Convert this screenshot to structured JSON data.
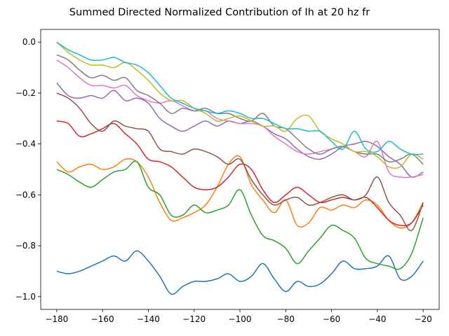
{
  "chart_data": {
    "type": "line",
    "title": "Summed Directed Normalized Contribution of Ih at 20 hz fr",
    "xlabel": "",
    "ylabel": "",
    "xlim": [
      -187,
      -13
    ],
    "ylim": [
      -1.05,
      0.05
    ],
    "xticks": [
      -180,
      -160,
      -140,
      -120,
      -100,
      -80,
      -60,
      -40,
      -20
    ],
    "xtick_labels": [
      "−180",
      "−160",
      "−140",
      "−120",
      "−100",
      "−80",
      "−60",
      "−40",
      "−20"
    ],
    "yticks": [
      0.0,
      -0.2,
      -0.4,
      -0.6,
      -0.8,
      -1.0
    ],
    "ytick_labels": [
      "0.0",
      "−0.2",
      "−0.4",
      "−0.6",
      "−0.8",
      "−1.0"
    ],
    "grid": false,
    "x": [
      -180,
      -175,
      -170,
      -165,
      -160,
      -155,
      -150,
      -145,
      -140,
      -135,
      -130,
      -125,
      -120,
      -115,
      -110,
      -105,
      -100,
      -95,
      -90,
      -85,
      -80,
      -75,
      -70,
      -65,
      -60,
      -55,
      -50,
      -45,
      -40,
      -35,
      -30,
      -25,
      -20
    ],
    "series": [
      {
        "color": "#1f77b4",
        "values": [
          -0.9,
          -0.91,
          -0.9,
          -0.88,
          -0.86,
          -0.84,
          -0.86,
          -0.82,
          -0.86,
          -0.92,
          -0.99,
          -0.96,
          -0.94,
          -0.94,
          -0.93,
          -0.91,
          -0.94,
          -0.92,
          -0.87,
          -0.93,
          -0.98,
          -0.94,
          -0.96,
          -0.95,
          -0.91,
          -0.86,
          -0.89,
          -0.89,
          -0.88,
          -0.84,
          -0.93,
          -0.92,
          -0.86
        ]
      },
      {
        "color": "#ff7f0e",
        "values": [
          -0.47,
          -0.51,
          -0.49,
          -0.48,
          -0.5,
          -0.49,
          -0.46,
          -0.47,
          -0.53,
          -0.63,
          -0.7,
          -0.69,
          -0.67,
          -0.64,
          -0.57,
          -0.48,
          -0.45,
          -0.56,
          -0.62,
          -0.67,
          -0.62,
          -0.72,
          -0.71,
          -0.65,
          -0.66,
          -0.64,
          -0.65,
          -0.62,
          -0.64,
          -0.7,
          -0.73,
          -0.71,
          -0.63
        ]
      },
      {
        "color": "#2ca02c",
        "values": [
          -0.5,
          -0.52,
          -0.55,
          -0.57,
          -0.54,
          -0.51,
          -0.5,
          -0.47,
          -0.57,
          -0.6,
          -0.68,
          -0.68,
          -0.64,
          -0.67,
          -0.66,
          -0.64,
          -0.58,
          -0.68,
          -0.76,
          -0.78,
          -0.81,
          -0.87,
          -0.82,
          -0.77,
          -0.72,
          -0.74,
          -0.77,
          -0.85,
          -0.87,
          -0.88,
          -0.89,
          -0.83,
          -0.69
        ]
      },
      {
        "color": "#d62728",
        "values": [
          -0.31,
          -0.32,
          -0.37,
          -0.36,
          -0.34,
          -0.32,
          -0.36,
          -0.4,
          -0.46,
          -0.47,
          -0.49,
          -0.53,
          -0.57,
          -0.58,
          -0.57,
          -0.53,
          -0.48,
          -0.5,
          -0.58,
          -0.63,
          -0.6,
          -0.57,
          -0.6,
          -0.63,
          -0.62,
          -0.61,
          -0.62,
          -0.61,
          -0.65,
          -0.7,
          -0.72,
          -0.71,
          -0.64
        ]
      },
      {
        "color": "#9467bd",
        "values": [
          -0.16,
          -0.21,
          -0.22,
          -0.21,
          -0.22,
          -0.19,
          -0.23,
          -0.22,
          -0.24,
          -0.3,
          -0.33,
          -0.35,
          -0.33,
          -0.31,
          -0.33,
          -0.31,
          -0.32,
          -0.31,
          -0.33,
          -0.36,
          -0.38,
          -0.42,
          -0.45,
          -0.46,
          -0.44,
          -0.41,
          -0.4,
          -0.39,
          -0.41,
          -0.45,
          -0.48,
          -0.53,
          -0.51
        ]
      },
      {
        "color": "#8c564b",
        "values": [
          -0.2,
          -0.22,
          -0.26,
          -0.32,
          -0.35,
          -0.31,
          -0.33,
          -0.34,
          -0.35,
          -0.42,
          -0.43,
          -0.44,
          -0.42,
          -0.43,
          -0.45,
          -0.48,
          -0.46,
          -0.54,
          -0.6,
          -0.64,
          -0.62,
          -0.61,
          -0.64,
          -0.63,
          -0.61,
          -0.6,
          -0.62,
          -0.6,
          -0.53,
          -0.63,
          -0.68,
          -0.74,
          -0.63
        ]
      },
      {
        "color": "#e377c2",
        "values": [
          -0.07,
          -0.1,
          -0.14,
          -0.17,
          -0.17,
          -0.18,
          -0.17,
          -0.21,
          -0.23,
          -0.24,
          -0.23,
          -0.25,
          -0.27,
          -0.27,
          -0.3,
          -0.31,
          -0.32,
          -0.32,
          -0.33,
          -0.37,
          -0.4,
          -0.43,
          -0.44,
          -0.43,
          -0.42,
          -0.41,
          -0.43,
          -0.45,
          -0.39,
          -0.51,
          -0.53,
          -0.53,
          -0.52
        ]
      },
      {
        "color": "#7f7f7f",
        "values": [
          -0.05,
          -0.07,
          -0.11,
          -0.14,
          -0.13,
          -0.15,
          -0.14,
          -0.19,
          -0.21,
          -0.24,
          -0.28,
          -0.26,
          -0.27,
          -0.26,
          -0.28,
          -0.28,
          -0.3,
          -0.31,
          -0.28,
          -0.33,
          -0.34,
          -0.38,
          -0.42,
          -0.44,
          -0.42,
          -0.41,
          -0.43,
          -0.44,
          -0.44,
          -0.47,
          -0.46,
          -0.44,
          -0.48
        ]
      },
      {
        "color": "#bcbd22",
        "values": [
          0.0,
          -0.04,
          -0.07,
          -0.09,
          -0.09,
          -0.1,
          -0.08,
          -0.11,
          -0.15,
          -0.2,
          -0.23,
          -0.23,
          -0.26,
          -0.28,
          -0.31,
          -0.3,
          -0.29,
          -0.31,
          -0.33,
          -0.33,
          -0.35,
          -0.3,
          -0.29,
          -0.35,
          -0.38,
          -0.4,
          -0.43,
          -0.43,
          -0.45,
          -0.49,
          -0.49,
          -0.44,
          -0.46
        ]
      },
      {
        "color": "#17becf",
        "values": [
          0.0,
          -0.03,
          -0.05,
          -0.07,
          -0.07,
          -0.06,
          -0.08,
          -0.09,
          -0.12,
          -0.17,
          -0.22,
          -0.24,
          -0.26,
          -0.27,
          -0.28,
          -0.27,
          -0.28,
          -0.3,
          -0.3,
          -0.32,
          -0.34,
          -0.34,
          -0.35,
          -0.35,
          -0.39,
          -0.42,
          -0.35,
          -0.42,
          -0.43,
          -0.39,
          -0.42,
          -0.44,
          -0.44
        ]
      }
    ]
  }
}
